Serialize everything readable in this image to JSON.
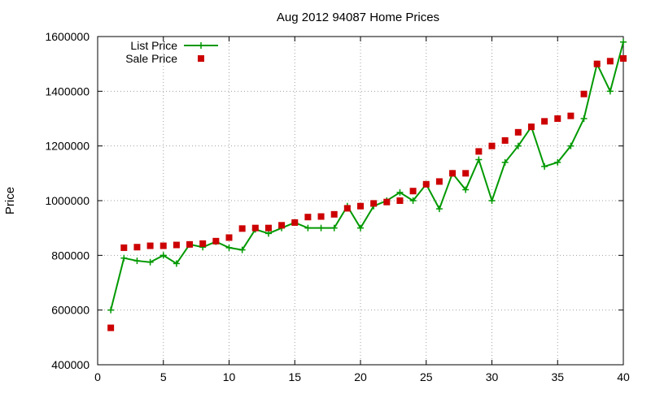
{
  "chart_data": {
    "type": "line",
    "title": "Aug 2012 94087 Home Prices",
    "xlabel": "",
    "ylabel": "Price",
    "xlim": [
      0,
      40
    ],
    "ylim": [
      400000,
      1600000
    ],
    "xticks": [
      0,
      5,
      10,
      15,
      20,
      25,
      30,
      35,
      40
    ],
    "yticks": [
      400000,
      600000,
      800000,
      1000000,
      1200000,
      1400000,
      1600000
    ],
    "grid": true,
    "legend_position": "top-left",
    "series": [
      {
        "name": "List Price",
        "style": "line-with-plus-markers",
        "color": "#009900",
        "x": [
          1,
          2,
          3,
          4,
          5,
          6,
          7,
          8,
          9,
          10,
          11,
          12,
          13,
          14,
          15,
          16,
          17,
          18,
          19,
          20,
          21,
          22,
          23,
          24,
          25,
          26,
          27,
          28,
          29,
          30,
          31,
          32,
          33,
          34,
          35,
          36,
          37,
          38,
          39,
          40
        ],
        "values": [
          600000,
          790000,
          780000,
          775000,
          800000,
          770000,
          840000,
          830000,
          850000,
          828000,
          820000,
          895000,
          880000,
          900000,
          920000,
          900000,
          900000,
          900000,
          980000,
          900000,
          980000,
          1000000,
          1030000,
          1000000,
          1060000,
          970000,
          1100000,
          1040000,
          1150000,
          1000000,
          1140000,
          1200000,
          1270000,
          1125000,
          1140000,
          1200000,
          1300000,
          1500000,
          1400000,
          1580000
        ]
      },
      {
        "name": "Sale Price",
        "style": "square-markers",
        "color": "#cc0000",
        "x": [
          1,
          2,
          3,
          4,
          5,
          6,
          7,
          8,
          9,
          10,
          11,
          12,
          13,
          14,
          15,
          16,
          17,
          18,
          19,
          20,
          21,
          22,
          23,
          24,
          25,
          26,
          27,
          28,
          29,
          30,
          31,
          32,
          33,
          34,
          35,
          36,
          37,
          38,
          39,
          40
        ],
        "values": [
          535000,
          828000,
          830000,
          835000,
          835000,
          838000,
          840000,
          843000,
          852000,
          865000,
          898000,
          900000,
          900000,
          910000,
          920000,
          940000,
          942000,
          950000,
          972000,
          980000,
          990000,
          995000,
          1000000,
          1035000,
          1060000,
          1070000,
          1100000,
          1100000,
          1180000,
          1200000,
          1220000,
          1250000,
          1270000,
          1290000,
          1300000,
          1310000,
          1390000,
          1500000,
          1510000,
          1520000
        ]
      }
    ]
  }
}
